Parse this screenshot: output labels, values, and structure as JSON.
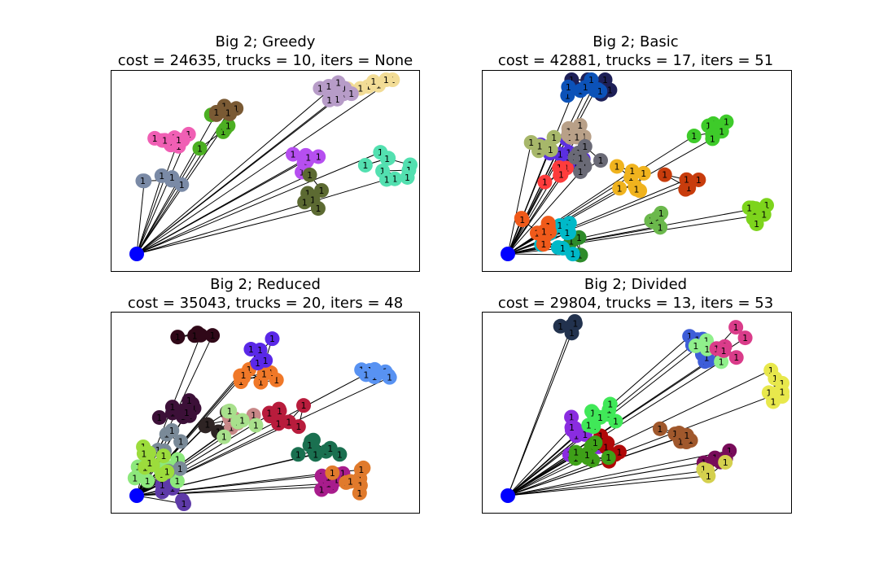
{
  "figure": {
    "node_label": "1",
    "edge_color": "#000000",
    "depot_color": "#0000ff",
    "panels": [
      {
        "id": "greedy",
        "title": "Big 2; Greedy",
        "subtitle": "cost = 24635, trucks = 10, iters = None",
        "route_colors": [
          "#4caf22",
          "#f2dc96",
          "#7a8aa6",
          "#f05fb4",
          "#7a5a34",
          "#b79cc8",
          "#b64ff0",
          "#5c6a32",
          "#53e0b0"
        ],
        "seed": 11
      },
      {
        "id": "basic",
        "title": "Big 2; Basic",
        "subtitle": "cost = 42881, trucks = 17, iters = 51",
        "route_colors": [
          "#5b2fe0",
          "#1e2058",
          "#f0b31e",
          "#b8a088",
          "#c83c0c",
          "#2e8b2a",
          "#ff3c3c",
          "#0c52b8",
          "#7dd41c",
          "#a7b76a",
          "#00b9c8",
          "#6a6a76",
          "#3ecb2a",
          "#6bb84c",
          "#f05a1a"
        ],
        "seed": 23
      },
      {
        "id": "reduced",
        "title": "Big 2; Reduced",
        "subtitle": "cost = 35043, trucks = 20, iters = 48",
        "route_colors": [
          "#2e2424",
          "#c88888",
          "#a8e08c",
          "#5e3aa8",
          "#5892f2",
          "#8de87c",
          "#f07828",
          "#3c1038",
          "#a81c8c",
          "#b81c3c",
          "#1a7050",
          "#7a8a98",
          "#e07a2c",
          "#5a28e8",
          "#9cdc3c",
          "#300818"
        ],
        "seed": 37
      },
      {
        "id": "divided",
        "title": "Big 2; Divided",
        "subtitle": "cost = 29804, trucks = 13, iters = 53",
        "route_colors": [
          "#22324e",
          "#8a2ce0",
          "#3e5ed8",
          "#90f08c",
          "#780c5a",
          "#b00808",
          "#3ea018",
          "#d4d04e",
          "#e8e84c",
          "#40e858",
          "#da3c8a",
          "#a0582c"
        ],
        "seed": 53
      }
    ]
  }
}
